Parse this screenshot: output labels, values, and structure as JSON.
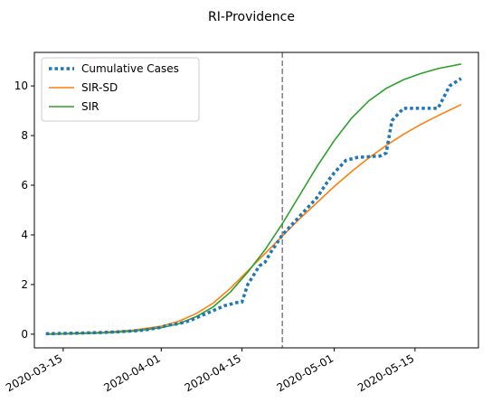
{
  "chart_data": {
    "type": "line",
    "title": "RI-Providence",
    "xlabel": "",
    "ylabel": "",
    "x_start": "2020-03-12",
    "x_end": "2020-05-23",
    "xlim": [
      "2020-03-10",
      "2020-05-26"
    ],
    "ylim": [
      -0.55,
      11.35
    ],
    "xticks": [
      "2020-03-15",
      "2020-04-01",
      "2020-04-15",
      "2020-05-01",
      "2020-05-15"
    ],
    "yticks": [
      0,
      2,
      4,
      6,
      8,
      10
    ],
    "grid": false,
    "legend_position": "top-left",
    "vertical_line": {
      "x": "2020-04-22",
      "style": "dashed",
      "color": "#808080"
    },
    "series": [
      {
        "name": "Cumulative Cases",
        "style": "dotted",
        "color": "#1f77b4",
        "points": [
          [
            "2020-03-12",
            0.02
          ],
          [
            "2020-03-17",
            0.04
          ],
          [
            "2020-03-22",
            0.07
          ],
          [
            "2020-03-25",
            0.1
          ],
          [
            "2020-03-29",
            0.16
          ],
          [
            "2020-04-01",
            0.28
          ],
          [
            "2020-04-02",
            0.36
          ],
          [
            "2020-04-04",
            0.42
          ],
          [
            "2020-04-06",
            0.55
          ],
          [
            "2020-04-08",
            0.75
          ],
          [
            "2020-04-10",
            0.95
          ],
          [
            "2020-04-12",
            1.15
          ],
          [
            "2020-04-14",
            1.27
          ],
          [
            "2020-04-15",
            1.3
          ],
          [
            "2020-04-16",
            2.0
          ],
          [
            "2020-04-18",
            2.75
          ],
          [
            "2020-04-19",
            2.9
          ],
          [
            "2020-04-20",
            3.3
          ],
          [
            "2020-04-22",
            4.0
          ],
          [
            "2020-04-24",
            4.5
          ],
          [
            "2020-04-26",
            5.0
          ],
          [
            "2020-04-28",
            5.5
          ],
          [
            "2020-04-30",
            6.2
          ],
          [
            "2020-05-01",
            6.5
          ],
          [
            "2020-05-03",
            7.0
          ],
          [
            "2020-05-05",
            7.12
          ],
          [
            "2020-05-07",
            7.15
          ],
          [
            "2020-05-09",
            7.18
          ],
          [
            "2020-05-10",
            7.3
          ],
          [
            "2020-05-11",
            8.6
          ],
          [
            "2020-05-13",
            9.1
          ],
          [
            "2020-05-15",
            9.1
          ],
          [
            "2020-05-17",
            9.1
          ],
          [
            "2020-05-19",
            9.1
          ],
          [
            "2020-05-21",
            10.0
          ],
          [
            "2020-05-23",
            10.3
          ]
        ]
      },
      {
        "name": "SIR-SD",
        "style": "solid",
        "color": "#ff7f0e",
        "points": [
          [
            "2020-03-12",
            0.01
          ],
          [
            "2020-03-17",
            0.04
          ],
          [
            "2020-03-22",
            0.08
          ],
          [
            "2020-03-27",
            0.16
          ],
          [
            "2020-04-01",
            0.32
          ],
          [
            "2020-04-04",
            0.52
          ],
          [
            "2020-04-07",
            0.82
          ],
          [
            "2020-04-10",
            1.25
          ],
          [
            "2020-04-13",
            1.85
          ],
          [
            "2020-04-16",
            2.55
          ],
          [
            "2020-04-19",
            3.25
          ],
          [
            "2020-04-22",
            3.95
          ],
          [
            "2020-04-25",
            4.65
          ],
          [
            "2020-04-28",
            5.3
          ],
          [
            "2020-05-01",
            5.95
          ],
          [
            "2020-05-04",
            6.55
          ],
          [
            "2020-05-07",
            7.1
          ],
          [
            "2020-05-10",
            7.6
          ],
          [
            "2020-05-13",
            8.05
          ],
          [
            "2020-05-16",
            8.45
          ],
          [
            "2020-05-19",
            8.8
          ],
          [
            "2020-05-23",
            9.25
          ]
        ]
      },
      {
        "name": "SIR",
        "style": "solid",
        "color": "#2ca02c",
        "points": [
          [
            "2020-03-12",
            0.0
          ],
          [
            "2020-03-17",
            0.02
          ],
          [
            "2020-03-22",
            0.05
          ],
          [
            "2020-03-27",
            0.12
          ],
          [
            "2020-04-01",
            0.26
          ],
          [
            "2020-04-04",
            0.42
          ],
          [
            "2020-04-07",
            0.7
          ],
          [
            "2020-04-10",
            1.1
          ],
          [
            "2020-04-13",
            1.7
          ],
          [
            "2020-04-16",
            2.5
          ],
          [
            "2020-04-19",
            3.4
          ],
          [
            "2020-04-22",
            4.45
          ],
          [
            "2020-04-25",
            5.6
          ],
          [
            "2020-04-28",
            6.75
          ],
          [
            "2020-05-01",
            7.8
          ],
          [
            "2020-05-04",
            8.7
          ],
          [
            "2020-05-07",
            9.4
          ],
          [
            "2020-05-10",
            9.9
          ],
          [
            "2020-05-13",
            10.25
          ],
          [
            "2020-05-16",
            10.5
          ],
          [
            "2020-05-19",
            10.7
          ],
          [
            "2020-05-23",
            10.88
          ]
        ]
      }
    ]
  }
}
